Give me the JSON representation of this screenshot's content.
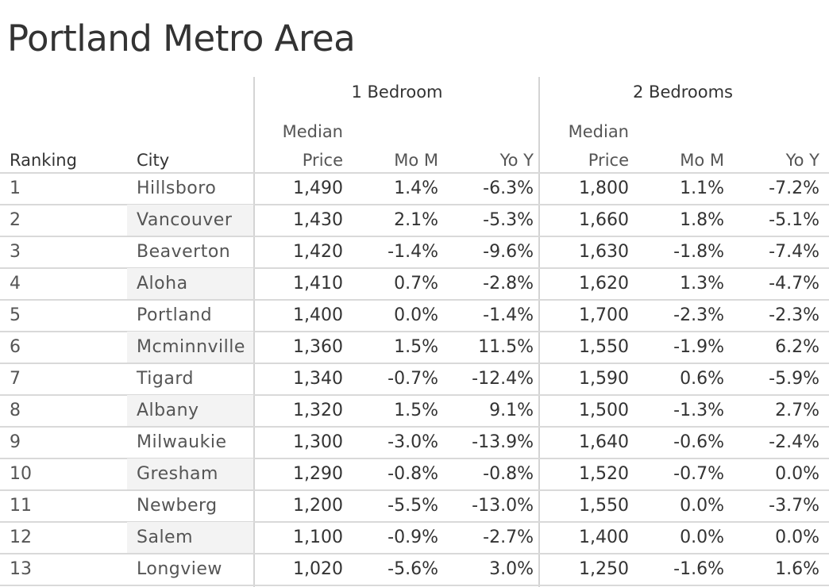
{
  "title": "Portland Metro Area",
  "groups": [
    "1 Bedroom",
    "2 Bedrooms"
  ],
  "headers": {
    "ranking": "Ranking",
    "city": "City",
    "median_top": "Median",
    "median_bottom": "Price",
    "mom": "Mo M",
    "yoy": "Yo Y"
  },
  "chart_data": {
    "type": "table",
    "title": "Portland Metro Area",
    "columns": [
      "Ranking",
      "City",
      "1 Bedroom Median Price",
      "1 Bedroom Mo M",
      "1 Bedroom Yo Y",
      "2 Bedrooms Median Price",
      "2 Bedrooms Mo M",
      "2 Bedrooms Yo Y"
    ],
    "rows": [
      [
        "1",
        "Hillsboro",
        "1,490",
        "1.4%",
        "-6.3%",
        "1,800",
        "1.1%",
        "-7.2%"
      ],
      [
        "2",
        "Vancouver",
        "1,430",
        "2.1%",
        "-5.3%",
        "1,660",
        "1.8%",
        "-5.1%"
      ],
      [
        "3",
        "Beaverton",
        "1,420",
        "-1.4%",
        "-9.6%",
        "1,630",
        "-1.8%",
        "-7.4%"
      ],
      [
        "4",
        "Aloha",
        "1,410",
        "0.7%",
        "-2.8%",
        "1,620",
        "1.3%",
        "-4.7%"
      ],
      [
        "5",
        "Portland",
        "1,400",
        "0.0%",
        "-1.4%",
        "1,700",
        "-2.3%",
        "-2.3%"
      ],
      [
        "6",
        "Mcminnville",
        "1,360",
        "1.5%",
        "11.5%",
        "1,550",
        "-1.9%",
        "6.2%"
      ],
      [
        "7",
        "Tigard",
        "1,340",
        "-0.7%",
        "-12.4%",
        "1,590",
        "0.6%",
        "-5.9%"
      ],
      [
        "8",
        "Albany",
        "1,320",
        "1.5%",
        "9.1%",
        "1,500",
        "-1.3%",
        "2.7%"
      ],
      [
        "9",
        "Milwaukie",
        "1,300",
        "-3.0%",
        "-13.9%",
        "1,640",
        "-0.6%",
        "-2.4%"
      ],
      [
        "10",
        "Gresham",
        "1,290",
        "-0.8%",
        "-0.8%",
        "1,520",
        "-0.7%",
        "0.0%"
      ],
      [
        "11",
        "Newberg",
        "1,200",
        "-5.5%",
        "-13.0%",
        "1,550",
        "0.0%",
        "-3.7%"
      ],
      [
        "12",
        "Salem",
        "1,100",
        "-0.9%",
        "-2.7%",
        "1,400",
        "0.0%",
        "0.0%"
      ],
      [
        "13",
        "Longview",
        "1,020",
        "-5.6%",
        "3.0%",
        "1,250",
        "-1.6%",
        "1.6%"
      ]
    ]
  }
}
